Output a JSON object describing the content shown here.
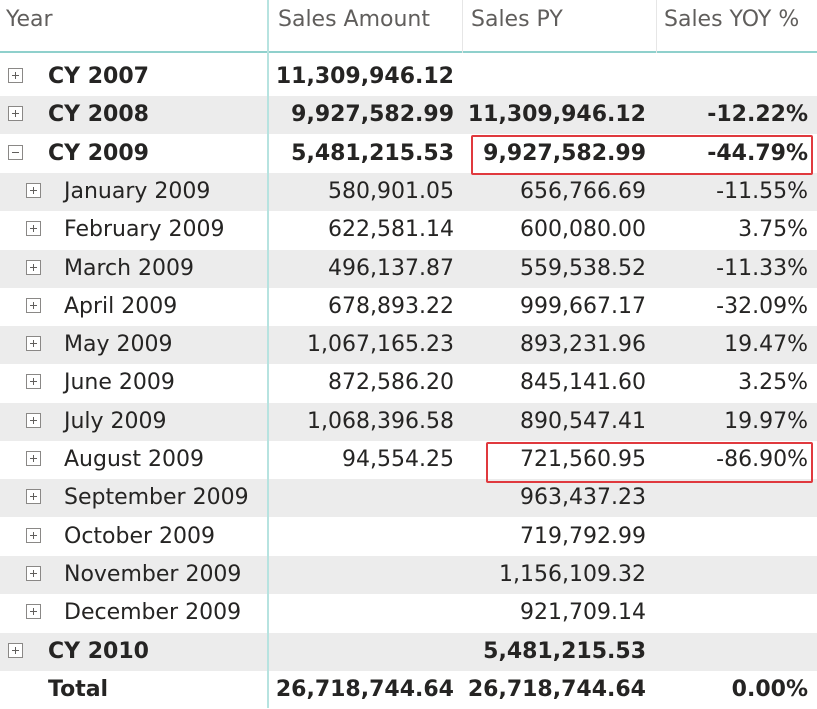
{
  "columns": {
    "year": "Year",
    "sales_amount": "Sales Amount",
    "sales_py": "Sales PY",
    "sales_yoy": "Sales YOY %"
  },
  "rows": [
    {
      "label": "CY 2007",
      "level": 0,
      "expander": "plus",
      "bold": true,
      "sales_amount": "11,309,946.12",
      "sales_py": "",
      "yoy": ""
    },
    {
      "label": "CY 2008",
      "level": 0,
      "expander": "plus",
      "bold": true,
      "sales_amount": "9,927,582.99",
      "sales_py": "11,309,946.12",
      "yoy": "-12.22%"
    },
    {
      "label": "CY 2009",
      "level": 0,
      "expander": "minus",
      "bold": true,
      "sales_amount": "5,481,215.53",
      "sales_py": "9,927,582.99",
      "yoy": "-44.79%"
    },
    {
      "label": "January 2009",
      "level": 1,
      "expander": "plus",
      "bold": false,
      "sales_amount": "580,901.05",
      "sales_py": "656,766.69",
      "yoy": "-11.55%"
    },
    {
      "label": "February 2009",
      "level": 1,
      "expander": "plus",
      "bold": false,
      "sales_amount": "622,581.14",
      "sales_py": "600,080.00",
      "yoy": "3.75%"
    },
    {
      "label": "March 2009",
      "level": 1,
      "expander": "plus",
      "bold": false,
      "sales_amount": "496,137.87",
      "sales_py": "559,538.52",
      "yoy": "-11.33%"
    },
    {
      "label": "April 2009",
      "level": 1,
      "expander": "plus",
      "bold": false,
      "sales_amount": "678,893.22",
      "sales_py": "999,667.17",
      "yoy": "-32.09%"
    },
    {
      "label": "May 2009",
      "level": 1,
      "expander": "plus",
      "bold": false,
      "sales_amount": "1,067,165.23",
      "sales_py": "893,231.96",
      "yoy": "19.47%"
    },
    {
      "label": "June 2009",
      "level": 1,
      "expander": "plus",
      "bold": false,
      "sales_amount": "872,586.20",
      "sales_py": "845,141.60",
      "yoy": "3.25%"
    },
    {
      "label": "July 2009",
      "level": 1,
      "expander": "plus",
      "bold": false,
      "sales_amount": "1,068,396.58",
      "sales_py": "890,547.41",
      "yoy": "19.97%"
    },
    {
      "label": "August 2009",
      "level": 1,
      "expander": "plus",
      "bold": false,
      "sales_amount": "94,554.25",
      "sales_py": "721,560.95",
      "yoy": "-86.90%"
    },
    {
      "label": "September 2009",
      "level": 1,
      "expander": "plus",
      "bold": false,
      "sales_amount": "",
      "sales_py": "963,437.23",
      "yoy": ""
    },
    {
      "label": "October 2009",
      "level": 1,
      "expander": "plus",
      "bold": false,
      "sales_amount": "",
      "sales_py": "719,792.99",
      "yoy": ""
    },
    {
      "label": "November 2009",
      "level": 1,
      "expander": "plus",
      "bold": false,
      "sales_amount": "",
      "sales_py": "1,156,109.32",
      "yoy": ""
    },
    {
      "label": "December 2009",
      "level": 1,
      "expander": "plus",
      "bold": false,
      "sales_amount": "",
      "sales_py": "921,709.14",
      "yoy": ""
    },
    {
      "label": "CY 2010",
      "level": 0,
      "expander": "plus",
      "bold": true,
      "sales_amount": "",
      "sales_py": "5,481,215.53",
      "yoy": ""
    }
  ],
  "total": {
    "label": "Total",
    "sales_amount": "26,718,744.64",
    "sales_py": "26,718,744.64",
    "yoy": "0.00%"
  },
  "highlight_color": "#e0393e"
}
